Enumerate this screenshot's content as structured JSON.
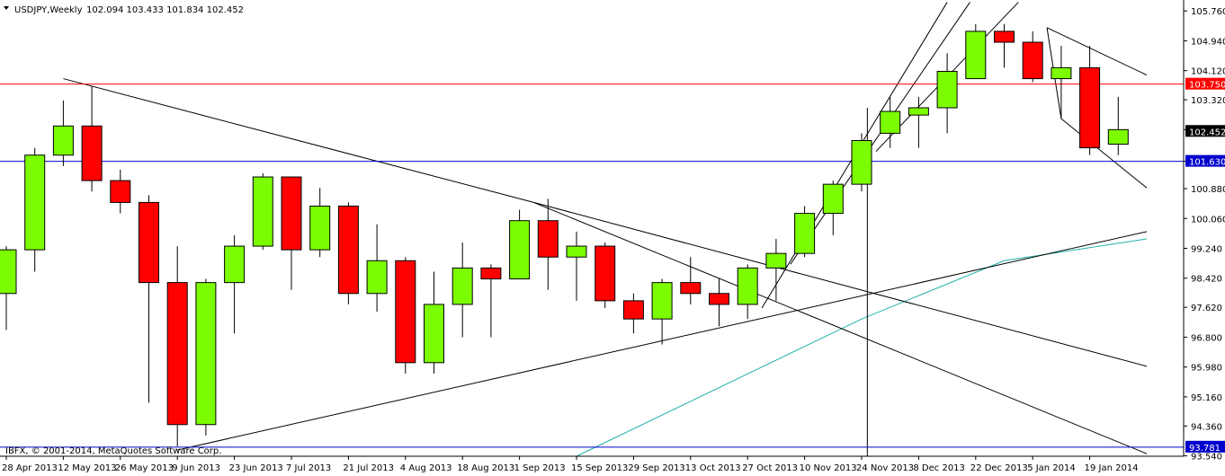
{
  "header": {
    "symbol": "USDJPY,Weekly",
    "ohlc": "102.094 103.433 101.834 102.452"
  },
  "copyright": "IBFX, © 2001-2014, MetaQuotes Software Corp.",
  "colors": {
    "bull": "#7CFC00",
    "bear": "#FF0000",
    "resistance_line": "#FF0000",
    "support_line": "#0000CD",
    "moving_average": "#20B2AA",
    "trendline": "#000000",
    "price_tag_text": "#FFFFFF"
  },
  "chart_data": {
    "type": "candlestick",
    "timeframe": "Weekly",
    "ylim": [
      93.53,
      106.06
    ],
    "y_ticks": [
      "105.760",
      "104.940",
      "104.120",
      "103.320",
      "102.500",
      "101.630",
      "100.880",
      "100.060",
      "99.240",
      "98.420",
      "97.620",
      "96.800",
      "95.980",
      "95.160",
      "94.360",
      "93.540"
    ],
    "x_ticks": [
      "28 Apr 2013",
      "12 May 2013",
      "26 May 2013",
      "9 Jun 2013",
      "23 Jun 2013",
      "7 Jul 2013",
      "21 Jul 2013",
      "4 Aug 2013",
      "18 Aug 2013",
      "1 Sep 2013",
      "15 Sep 2013",
      "29 Sep 2013",
      "13 Oct 2013",
      "27 Oct 2013",
      "10 Nov 2013",
      "24 Nov 2013",
      "8 Dec 2013",
      "22 Dec 2013",
      "5 Jan 2014",
      "19 Jan 2014"
    ],
    "candles": [
      {
        "o": 98.0,
        "h": 99.3,
        "l": 97.0,
        "c": 99.2
      },
      {
        "o": 99.2,
        "h": 102.0,
        "l": 98.6,
        "c": 101.8
      },
      {
        "o": 101.8,
        "h": 103.3,
        "l": 101.5,
        "c": 102.6
      },
      {
        "o": 102.6,
        "h": 103.7,
        "l": 100.8,
        "c": 101.1
      },
      {
        "o": 101.1,
        "h": 101.4,
        "l": 100.2,
        "c": 100.5
      },
      {
        "o": 100.5,
        "h": 100.7,
        "l": 95.0,
        "c": 98.3
      },
      {
        "o": 98.3,
        "h": 99.3,
        "l": 93.8,
        "c": 94.4
      },
      {
        "o": 94.4,
        "h": 98.4,
        "l": 94.1,
        "c": 98.3
      },
      {
        "o": 98.3,
        "h": 99.6,
        "l": 96.9,
        "c": 99.3
      },
      {
        "o": 99.3,
        "h": 101.3,
        "l": 99.2,
        "c": 101.2
      },
      {
        "o": 101.2,
        "h": 101.2,
        "l": 98.1,
        "c": 99.2
      },
      {
        "o": 99.2,
        "h": 100.9,
        "l": 99.0,
        "c": 100.4
      },
      {
        "o": 100.4,
        "h": 100.5,
        "l": 97.7,
        "c": 98.0
      },
      {
        "o": 98.0,
        "h": 99.9,
        "l": 97.5,
        "c": 98.9
      },
      {
        "o": 98.9,
        "h": 99.0,
        "l": 95.8,
        "c": 96.1
      },
      {
        "o": 96.1,
        "h": 98.6,
        "l": 95.8,
        "c": 97.7
      },
      {
        "o": 97.7,
        "h": 99.4,
        "l": 96.8,
        "c": 98.7
      },
      {
        "o": 98.7,
        "h": 98.8,
        "l": 96.8,
        "c": 98.4
      },
      {
        "o": 98.4,
        "h": 100.3,
        "l": 98.4,
        "c": 100.0
      },
      {
        "o": 100.0,
        "h": 100.6,
        "l": 98.1,
        "c": 99.0
      },
      {
        "o": 99.0,
        "h": 99.7,
        "l": 97.8,
        "c": 99.3
      },
      {
        "o": 99.3,
        "h": 99.4,
        "l": 97.6,
        "c": 97.8
      },
      {
        "o": 97.8,
        "h": 98.0,
        "l": 96.9,
        "c": 97.3
      },
      {
        "o": 97.3,
        "h": 98.4,
        "l": 96.6,
        "c": 98.3
      },
      {
        "o": 98.3,
        "h": 99.0,
        "l": 97.7,
        "c": 98.0
      },
      {
        "o": 98.0,
        "h": 98.4,
        "l": 97.1,
        "c": 97.7
      },
      {
        "o": 97.7,
        "h": 98.8,
        "l": 97.3,
        "c": 98.7
      },
      {
        "o": 98.7,
        "h": 99.5,
        "l": 97.8,
        "c": 99.1
      },
      {
        "o": 99.1,
        "h": 100.4,
        "l": 99.0,
        "c": 100.2
      },
      {
        "o": 100.2,
        "h": 101.1,
        "l": 99.6,
        "c": 101.0
      },
      {
        "o": 101.0,
        "h": 102.4,
        "l": 100.8,
        "c": 102.2
      },
      {
        "o": 102.4,
        "h": 103.4,
        "l": 102.0,
        "c": 103.0
      },
      {
        "o": 102.9,
        "h": 103.4,
        "l": 102.0,
        "c": 103.1
      },
      {
        "o": 103.1,
        "h": 104.6,
        "l": 102.4,
        "c": 104.1
      },
      {
        "o": 103.9,
        "h": 105.4,
        "l": 103.9,
        "c": 105.2
      },
      {
        "o": 105.2,
        "h": 105.4,
        "l": 104.2,
        "c": 104.9
      },
      {
        "o": 104.9,
        "h": 105.2,
        "l": 103.8,
        "c": 103.9
      },
      {
        "o": 103.9,
        "h": 104.8,
        "l": 102.8,
        "c": 104.2
      },
      {
        "o": 104.2,
        "h": 104.8,
        "l": 101.8,
        "c": 102.0
      },
      {
        "o": 102.1,
        "h": 103.4,
        "l": 101.8,
        "c": 102.5
      }
    ],
    "horizontal_lines": [
      {
        "price": 103.75,
        "label": "103.750",
        "role": "resistance"
      },
      {
        "price": 101.63,
        "label": "101.630",
        "role": "support"
      },
      {
        "price": 93.781,
        "label": "93.781",
        "role": "low"
      }
    ],
    "current_price": {
      "price": 102.452,
      "label": "102.452"
    },
    "trendlines": [
      {
        "x1": 2,
        "y1": 103.9,
        "x2": 18.5,
        "y2": 100.5
      },
      {
        "x1": 18.5,
        "y1": 100.5,
        "x2": 40,
        "y2": 96.0
      },
      {
        "x1": 18.5,
        "y1": 100.5,
        "x2": 40,
        "y2": 93.6
      },
      {
        "x1": 6,
        "y1": 93.7,
        "x2": 40,
        "y2": 99.7
      },
      {
        "x1": 26.5,
        "y1": 97.6,
        "x2": 33,
        "y2": 106.0
      },
      {
        "x1": 27.5,
        "y1": 98.8,
        "x2": 33.8,
        "y2": 106.0
      },
      {
        "x1": 30.5,
        "y1": 101.9,
        "x2": 35.5,
        "y2": 106.0
      },
      {
        "x1": 36.5,
        "y1": 105.3,
        "x2": 40,
        "y2": 104.0
      },
      {
        "x1": 36.5,
        "y1": 105.3,
        "x2": 37,
        "y2": 102.8
      },
      {
        "x1": 37,
        "y1": 102.8,
        "x2": 40,
        "y2": 100.9
      }
    ],
    "vertical_line": {
      "x": 30.2
    },
    "moving_average": [
      {
        "x": 20,
        "y": 93.53
      },
      {
        "x": 30,
        "y": 97.3
      },
      {
        "x": 35,
        "y": 98.9
      },
      {
        "x": 40,
        "y": 99.5
      }
    ]
  }
}
